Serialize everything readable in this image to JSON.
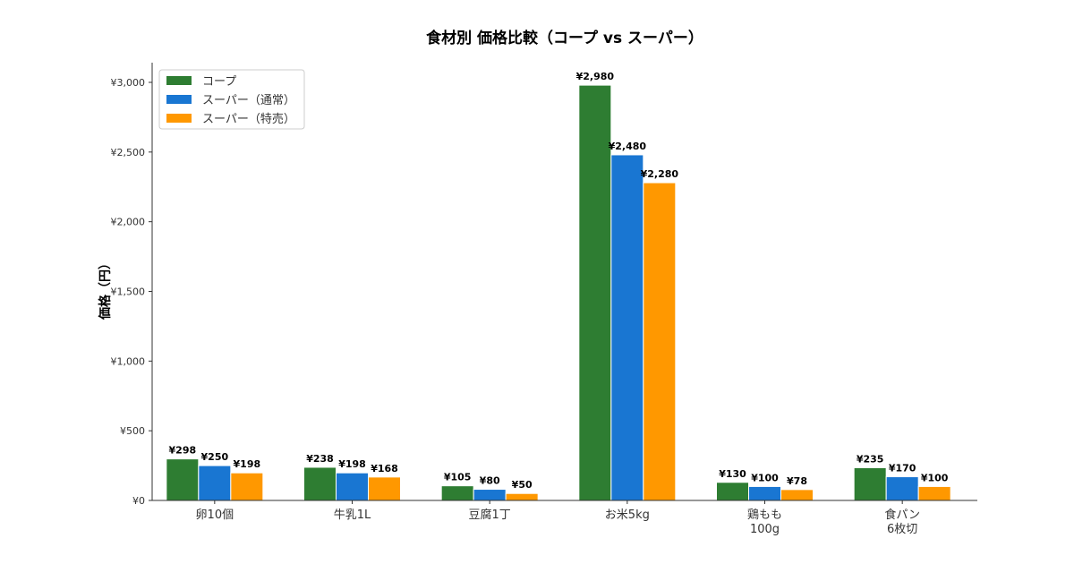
{
  "chart_data": {
    "type": "bar",
    "title": "食材別 価格比較（コープ vs スーパー）",
    "xlabel": "",
    "ylabel": "価格（円）",
    "categories": [
      "卵10個",
      "牛乳1L",
      "豆腐1丁",
      "お米5kg",
      "鶏もも\n100g",
      "食パン\n6枚切"
    ],
    "series": [
      {
        "name": "コープ",
        "color": "#2e7d32",
        "values": [
          298,
          238,
          105,
          2980,
          130,
          235
        ],
        "labels": [
          "¥298",
          "¥238",
          "¥105",
          "¥2,980",
          "¥130",
          "¥235"
        ]
      },
      {
        "name": "スーパー（通常）",
        "color": "#1976d2",
        "values": [
          250,
          198,
          80,
          2480,
          100,
          170
        ],
        "labels": [
          "¥250",
          "¥198",
          "¥80",
          "¥2,480",
          "¥100",
          "¥170"
        ]
      },
      {
        "name": "スーパー（特売）",
        "color": "#ff9800",
        "values": [
          198,
          168,
          50,
          2280,
          78,
          100
        ],
        "labels": [
          "¥198",
          "¥168",
          "¥50",
          "¥2,280",
          "¥78",
          "¥100"
        ]
      }
    ],
    "yticks": [
      0,
      500,
      1000,
      1500,
      2000,
      2500,
      3000
    ],
    "ytick_labels": [
      "¥0",
      "¥500",
      "¥1,000",
      "¥1,500",
      "¥2,000",
      "¥2,500",
      "¥3,000"
    ],
    "ylim": [
      0,
      3129
    ],
    "grid": false,
    "legend": "top-left"
  }
}
